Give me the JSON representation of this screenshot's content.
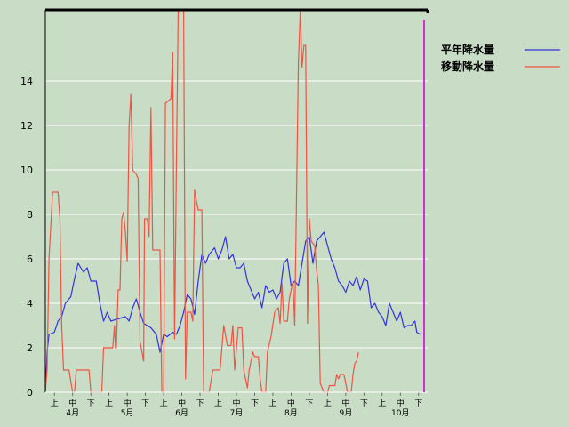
{
  "chart_data": {
    "type": "line",
    "title": "",
    "xlabel": "",
    "ylabel": "",
    "ylim": [
      0,
      17.2
    ],
    "yticks": [
      0,
      2,
      4,
      6,
      8,
      10,
      12,
      14
    ],
    "grid": true,
    "legend_position": "top-right",
    "x_axis": {
      "dekad_labels": [
        "上",
        "中",
        "下",
        "上",
        "中",
        "下",
        "上",
        "中",
        "下",
        "上",
        "中",
        "下",
        "上",
        "中",
        "下",
        "上",
        "中",
        "下",
        "上",
        "中",
        "下"
      ],
      "month_labels": [
        "4月",
        "5月",
        "6月",
        "7月",
        "8月",
        "9月",
        "10月"
      ],
      "start": "4月1日",
      "days": 210
    },
    "series": [
      {
        "name": "平年降水量",
        "color": "#3333dd",
        "points": [
          [
            0,
            0
          ],
          [
            1,
            1.8
          ],
          [
            2,
            2.6
          ],
          [
            5,
            2.7
          ],
          [
            7,
            3.2
          ],
          [
            9,
            3.4
          ],
          [
            11,
            4.0
          ],
          [
            14,
            4.3
          ],
          [
            16,
            5.1
          ],
          [
            18,
            5.8
          ],
          [
            21,
            5.4
          ],
          [
            23,
            5.6
          ],
          [
            25,
            5.0
          ],
          [
            28,
            5.0
          ],
          [
            30,
            4.0
          ],
          [
            32,
            3.2
          ],
          [
            34,
            3.6
          ],
          [
            36,
            3.2
          ],
          [
            40,
            3.3
          ],
          [
            44,
            3.4
          ],
          [
            46,
            3.2
          ],
          [
            48,
            3.8
          ],
          [
            50,
            4.2
          ],
          [
            52,
            3.6
          ],
          [
            54,
            3.1
          ],
          [
            56,
            3.0
          ],
          [
            58,
            2.9
          ],
          [
            61,
            2.6
          ],
          [
            63,
            1.8
          ],
          [
            65,
            2.6
          ],
          [
            67,
            2.5
          ],
          [
            70,
            2.7
          ],
          [
            72,
            2.6
          ],
          [
            74,
            3.0
          ],
          [
            76,
            3.6
          ],
          [
            78,
            4.4
          ],
          [
            80,
            4.2
          ],
          [
            82,
            3.5
          ],
          [
            84,
            5.0
          ],
          [
            86,
            6.2
          ],
          [
            88,
            5.8
          ],
          [
            90,
            6.2
          ],
          [
            93,
            6.5
          ],
          [
            95,
            6.0
          ],
          [
            97,
            6.4
          ],
          [
            99,
            7.0
          ],
          [
            101,
            6.0
          ],
          [
            103,
            6.2
          ],
          [
            105,
            5.6
          ],
          [
            107,
            5.6
          ],
          [
            109,
            5.8
          ],
          [
            111,
            5.0
          ],
          [
            113,
            4.6
          ],
          [
            115,
            4.2
          ],
          [
            117,
            4.5
          ],
          [
            119,
            3.8
          ],
          [
            121,
            4.8
          ],
          [
            123,
            4.5
          ],
          [
            125,
            4.6
          ],
          [
            127,
            4.2
          ],
          [
            129,
            4.5
          ],
          [
            131,
            5.8
          ],
          [
            133,
            6.0
          ],
          [
            135,
            4.8
          ],
          [
            137,
            5.0
          ],
          [
            139,
            4.8
          ],
          [
            141,
            5.8
          ],
          [
            143,
            6.8
          ],
          [
            145,
            7.0
          ],
          [
            147,
            5.8
          ],
          [
            149,
            6.8
          ],
          [
            151,
            7.0
          ],
          [
            153,
            7.2
          ],
          [
            155,
            6.6
          ],
          [
            157,
            6.0
          ],
          [
            159,
            5.6
          ],
          [
            161,
            5.0
          ],
          [
            163,
            4.8
          ],
          [
            165,
            4.5
          ],
          [
            167,
            5.0
          ],
          [
            169,
            4.8
          ],
          [
            171,
            5.2
          ],
          [
            173,
            4.6
          ],
          [
            175,
            5.1
          ],
          [
            177,
            5.0
          ],
          [
            179,
            3.8
          ],
          [
            181,
            4.0
          ],
          [
            183,
            3.6
          ],
          [
            185,
            3.4
          ],
          [
            187,
            3.0
          ],
          [
            189,
            4.0
          ],
          [
            191,
            3.6
          ],
          [
            193,
            3.2
          ],
          [
            195,
            3.6
          ],
          [
            197,
            2.9
          ],
          [
            199,
            3.0
          ],
          [
            201,
            3.0
          ],
          [
            203,
            3.2
          ],
          [
            204,
            2.7
          ],
          [
            206,
            2.6
          ]
        ]
      },
      {
        "name": "移動降水量",
        "color": "#ee5544",
        "points": [
          [
            0,
            0
          ],
          [
            1,
            1.0
          ],
          [
            2,
            6.0
          ],
          [
            4,
            9.0
          ],
          [
            7,
            9.0
          ],
          [
            8,
            7.8
          ],
          [
            9,
            3.0
          ],
          [
            10,
            1.0
          ],
          [
            13,
            1.0
          ],
          [
            15,
            0
          ],
          [
            16,
            0
          ],
          [
            17,
            1.0
          ],
          [
            24,
            1.0
          ],
          [
            25,
            0
          ],
          [
            31,
            0
          ],
          [
            32,
            2.0
          ],
          [
            37,
            2.0
          ],
          [
            38,
            3.0
          ],
          [
            38.5,
            2.0
          ],
          [
            39,
            2.0
          ],
          [
            40,
            4.6
          ],
          [
            41,
            4.6
          ],
          [
            42,
            7.8
          ],
          [
            43,
            8.1
          ],
          [
            44,
            7.2
          ],
          [
            45,
            5.9
          ],
          [
            46,
            12.0
          ],
          [
            47,
            13.4
          ],
          [
            48,
            10.0
          ],
          [
            50,
            9.8
          ],
          [
            51,
            9.6
          ],
          [
            52,
            2.3
          ],
          [
            54,
            1.4
          ],
          [
            54.5,
            7.8
          ],
          [
            56,
            7.8
          ],
          [
            57,
            7.0
          ],
          [
            58,
            12.8
          ],
          [
            59,
            6.4
          ],
          [
            60,
            6.4
          ],
          [
            63,
            6.4
          ],
          [
            64,
            0
          ],
          [
            65,
            0
          ],
          [
            66,
            13.0
          ],
          [
            69,
            13.2
          ],
          [
            70,
            15.3
          ],
          [
            71,
            2.4
          ],
          [
            72,
            10.0
          ],
          [
            73,
            17.2
          ],
          [
            76,
            17.2
          ],
          [
            77,
            0.6
          ],
          [
            78,
            3.6
          ],
          [
            80,
            3.6
          ],
          [
            81,
            3.2
          ],
          [
            82,
            9.1
          ],
          [
            83,
            8.6
          ],
          [
            84,
            8.2
          ],
          [
            86,
            8.2
          ],
          [
            87,
            0
          ],
          [
            90,
            0
          ],
          [
            92,
            1.0
          ],
          [
            96,
            1.0
          ],
          [
            98,
            3.0
          ],
          [
            100,
            2.1
          ],
          [
            102,
            2.1
          ],
          [
            103,
            3.0
          ],
          [
            104,
            1.0
          ],
          [
            106,
            2.9
          ],
          [
            108,
            2.9
          ],
          [
            109,
            1.0
          ],
          [
            111,
            0.2
          ],
          [
            112,
            1.0
          ],
          [
            114,
            1.8
          ],
          [
            115,
            1.6
          ],
          [
            117,
            1.6
          ],
          [
            118,
            0.6
          ],
          [
            119,
            0
          ],
          [
            121,
            0
          ],
          [
            122,
            1.8
          ],
          [
            124,
            2.5
          ],
          [
            126,
            3.6
          ],
          [
            128,
            3.8
          ],
          [
            129,
            3.1
          ],
          [
            130,
            4.9
          ],
          [
            131,
            3.2
          ],
          [
            133,
            3.2
          ],
          [
            134,
            4.2
          ],
          [
            136,
            5.0
          ],
          [
            137,
            3.0
          ],
          [
            139,
            14.8
          ],
          [
            140,
            17.2
          ],
          [
            141,
            14.6
          ],
          [
            142,
            15.6
          ],
          [
            143,
            15.6
          ],
          [
            144,
            3.1
          ],
          [
            145,
            7.8
          ],
          [
            146,
            6.8
          ],
          [
            148,
            6.6
          ],
          [
            149,
            5.5
          ],
          [
            150,
            4.8
          ],
          [
            151,
            0.4
          ],
          [
            153,
            0
          ],
          [
            155,
            0
          ],
          [
            156,
            0.3
          ],
          [
            159,
            0.3
          ],
          [
            160,
            0.8
          ],
          [
            161,
            0.6
          ],
          [
            162,
            0.8
          ],
          [
            164,
            0.8
          ],
          [
            165,
            0.4
          ],
          [
            166,
            0
          ],
          [
            168,
            0
          ],
          [
            169,
            0.8
          ],
          [
            170,
            1.3
          ],
          [
            171,
            1.4
          ],
          [
            172,
            1.8
          ]
        ]
      }
    ]
  }
}
